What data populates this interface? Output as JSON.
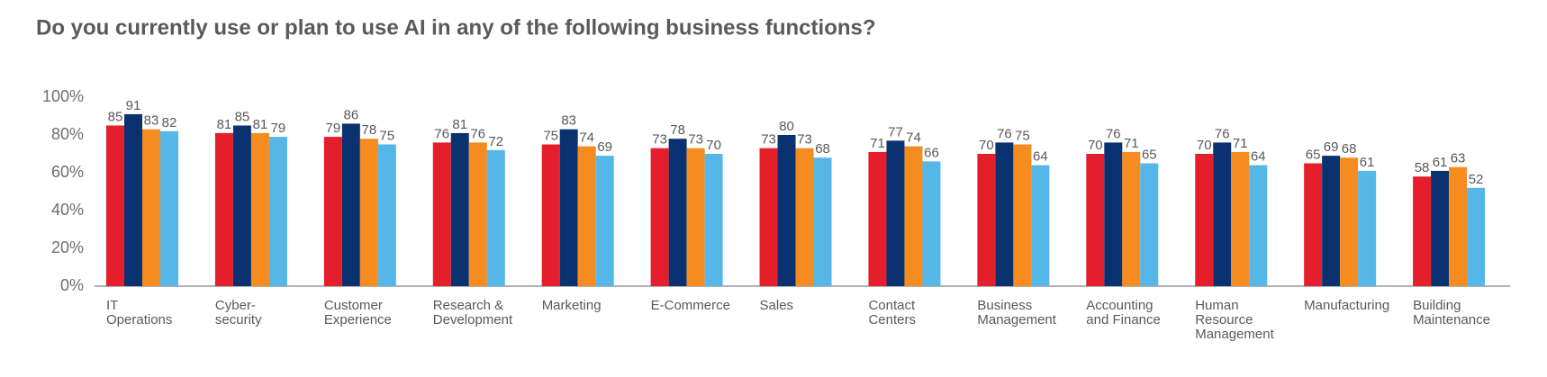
{
  "chart_data": {
    "type": "bar",
    "title": "Do you currently use or plan to use AI in any of the following business functions?",
    "categories": [
      [
        "IT",
        "Operations"
      ],
      [
        "Cyber-",
        "security"
      ],
      [
        "Customer",
        "Experience"
      ],
      [
        "Research &",
        "Development"
      ],
      [
        "Marketing"
      ],
      [
        "E-Commerce"
      ],
      [
        "Sales"
      ],
      [
        "Contact",
        "Centers"
      ],
      [
        "Business",
        "Management"
      ],
      [
        "Accounting",
        "and Finance"
      ],
      [
        "Human",
        "Resource",
        "Management"
      ],
      [
        "Manufacturing"
      ],
      [
        "Building",
        "Maintenance"
      ]
    ],
    "series": [
      {
        "color": "#e41f2b",
        "values": [
          85,
          81,
          79,
          76,
          75,
          73,
          73,
          71,
          70,
          70,
          70,
          65,
          58
        ]
      },
      {
        "color": "#0b3270",
        "values": [
          91,
          85,
          86,
          81,
          83,
          78,
          80,
          77,
          76,
          76,
          76,
          69,
          61
        ]
      },
      {
        "color": "#f68b1f",
        "values": [
          83,
          81,
          78,
          76,
          74,
          73,
          73,
          74,
          75,
          71,
          71,
          68,
          63
        ]
      },
      {
        "color": "#55b7e8",
        "values": [
          82,
          79,
          75,
          72,
          69,
          70,
          68,
          66,
          64,
          65,
          64,
          61,
          52
        ]
      }
    ],
    "ylim": [
      0,
      100
    ],
    "yticks": [
      {
        "value": 0,
        "label": "0%"
      },
      {
        "value": 20,
        "label": "20%"
      },
      {
        "value": 40,
        "label": "40%"
      },
      {
        "value": 60,
        "label": "60%"
      },
      {
        "value": 80,
        "label": "80%"
      },
      {
        "value": 100,
        "label": "100%"
      }
    ],
    "grid": false
  }
}
